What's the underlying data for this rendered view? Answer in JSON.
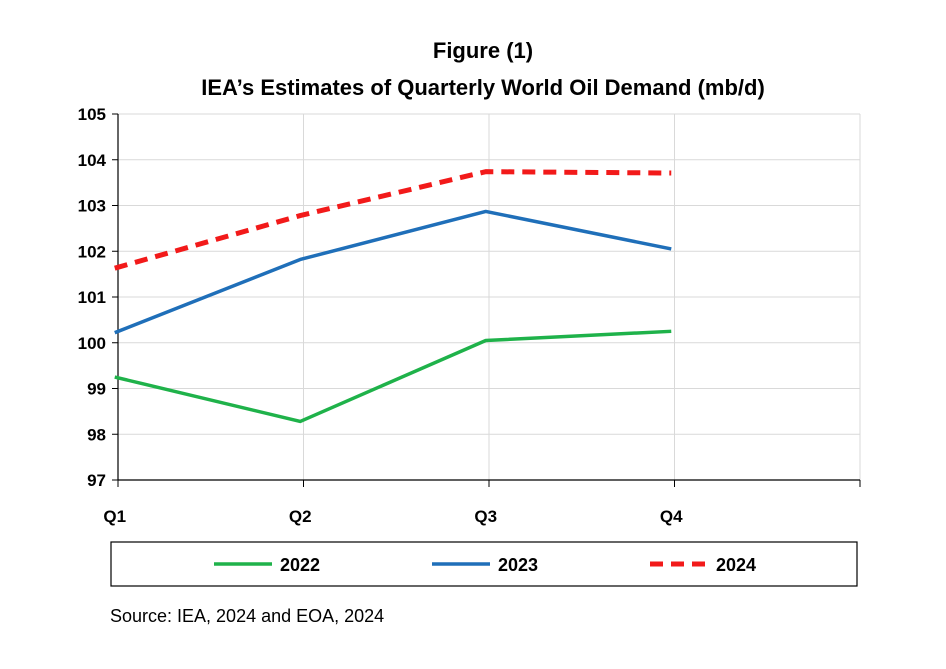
{
  "chart_data": {
    "type": "line",
    "title": "Figure (1)",
    "subtitle": "IEA’s Estimates of Quarterly World Oil Demand (mb/d)",
    "categories": [
      "Q1",
      "Q2",
      "Q3",
      "Q4"
    ],
    "ylim": [
      97,
      105
    ],
    "yticks": [
      "97",
      "98",
      "99",
      "100",
      "101",
      "102",
      "103",
      "104",
      "105"
    ],
    "grid": true,
    "legend_position": "bottom",
    "series": [
      {
        "name": "2022",
        "color": "#1FB24A",
        "dash": "solid",
        "values": [
          99.25,
          98.28,
          100.05,
          100.25
        ]
      },
      {
        "name": "2023",
        "color": "#1F6FB9",
        "dash": "solid",
        "values": [
          100.22,
          101.82,
          102.87,
          102.05
        ]
      },
      {
        "name": "2024",
        "color": "#F21A1A",
        "dash": "dashed",
        "values": [
          101.63,
          102.78,
          103.74,
          103.71
        ]
      }
    ],
    "source": "Source: IEA, 2024 and EOA, 2024"
  }
}
